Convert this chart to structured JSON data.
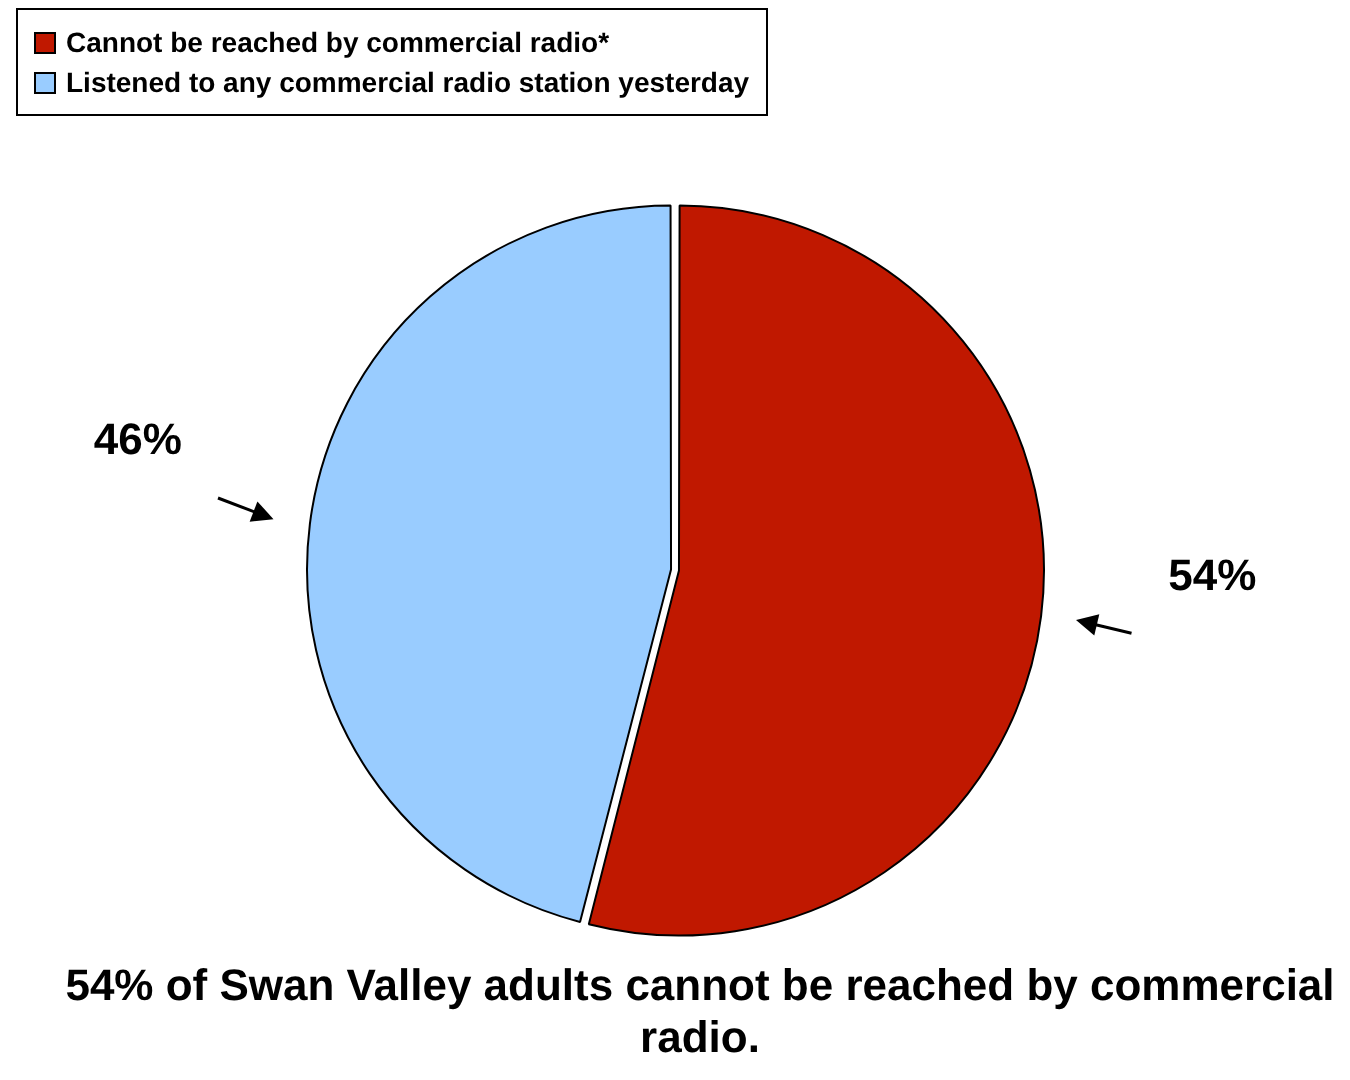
{
  "chart_data": {
    "type": "pie",
    "title": "54% of Swan Valley adults cannot be reached by commercial radio.",
    "categories": [
      "Cannot be reached by commercial radio*",
      "Listened to any commercial radio station yesterday"
    ],
    "values": [
      54,
      46
    ],
    "colors": [
      "#c01800",
      "#99ccff"
    ],
    "legend": "top left",
    "value_labels": [
      "54%",
      "46%"
    ]
  }
}
